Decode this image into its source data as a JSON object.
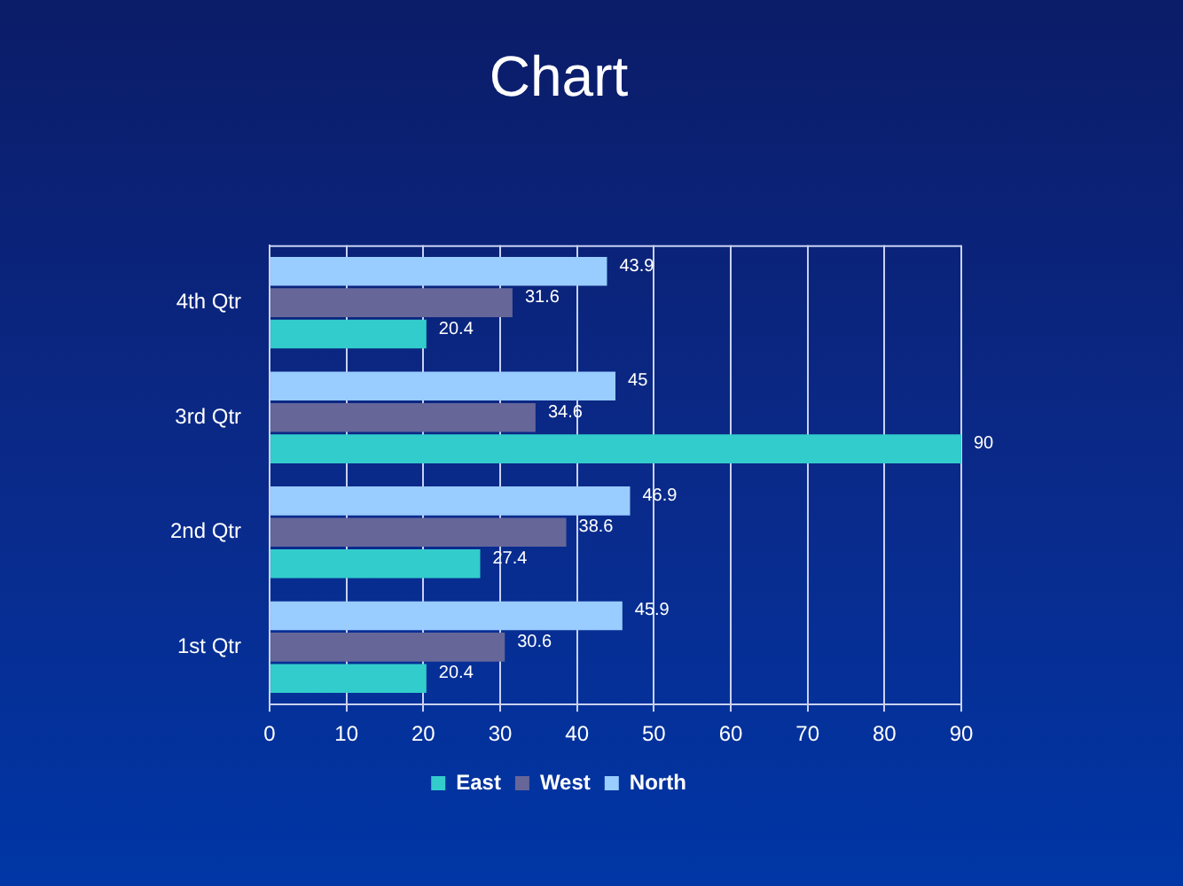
{
  "chart_data": {
    "type": "bar",
    "orientation": "horizontal",
    "title": "Chart",
    "categories": [
      "4th Qtr",
      "3rd Qtr",
      "2nd Qtr",
      "1st Qtr"
    ],
    "series": [
      {
        "name": "East",
        "color": "#33cccc",
        "values": [
          20.4,
          90,
          27.4,
          20.4
        ]
      },
      {
        "name": "West",
        "color": "#666699",
        "values": [
          31.6,
          34.6,
          38.6,
          30.6
        ]
      },
      {
        "name": "North",
        "color": "#99ccff",
        "values": [
          43.9,
          45,
          46.9,
          45.9
        ]
      }
    ],
    "xlim": [
      0,
      90
    ],
    "xticks": [
      0,
      10,
      20,
      30,
      40,
      50,
      60,
      70,
      80,
      90
    ],
    "grid": "x",
    "legend": "bottom",
    "data_labels": true
  }
}
